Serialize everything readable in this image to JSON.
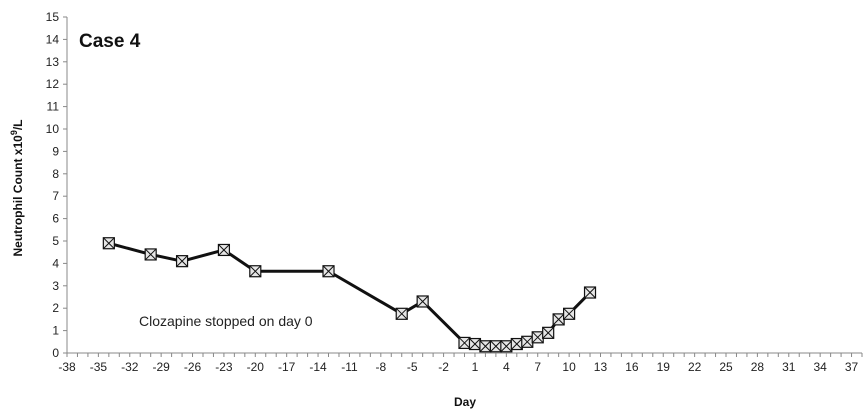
{
  "chart_data": {
    "type": "line",
    "title": "Case 4",
    "xlabel": "Day",
    "ylabel": "Neutrophil Count x10⁹/L",
    "annotation": "Clozapine stopped on day 0",
    "xlim": [
      -38,
      38
    ],
    "ylim": [
      0,
      15
    ],
    "x_tick_labels": [
      "-38",
      "-35",
      "-32",
      "-29",
      "-26",
      "-23",
      "-20",
      "-17",
      "-14",
      "-11",
      "-8",
      "-5",
      "-2",
      "1",
      "4",
      "7",
      "10",
      "13",
      "16",
      "19",
      "22",
      "25",
      "28",
      "31",
      "34",
      "37"
    ],
    "y_tick_labels": [
      "0",
      "1",
      "2",
      "3",
      "4",
      "5",
      "6",
      "7",
      "8",
      "9",
      "10",
      "11",
      "12",
      "13",
      "14",
      "15"
    ],
    "grid": false,
    "series": [
      {
        "marker": "boxed-x",
        "color": "#111111",
        "points": [
          {
            "x": -34,
            "y": 4.9
          },
          {
            "x": -30,
            "y": 4.4
          },
          {
            "x": -27,
            "y": 4.1
          },
          {
            "x": -23,
            "y": 4.6
          },
          {
            "x": -20,
            "y": 3.65
          },
          {
            "x": -13,
            "y": 3.65
          },
          {
            "x": -6,
            "y": 1.75
          },
          {
            "x": -4,
            "y": 2.3
          },
          {
            "x": 0,
            "y": 0.45
          },
          {
            "x": 1,
            "y": 0.4
          },
          {
            "x": 2,
            "y": 0.3
          },
          {
            "x": 3,
            "y": 0.3
          },
          {
            "x": 4,
            "y": 0.3
          },
          {
            "x": 5,
            "y": 0.4
          },
          {
            "x": 6,
            "y": 0.5
          },
          {
            "x": 7,
            "y": 0.7
          },
          {
            "x": 8,
            "y": 0.9
          },
          {
            "x": 9,
            "y": 1.5
          },
          {
            "x": 10,
            "y": 1.75
          },
          {
            "x": 12,
            "y": 2.7
          }
        ]
      }
    ]
  }
}
